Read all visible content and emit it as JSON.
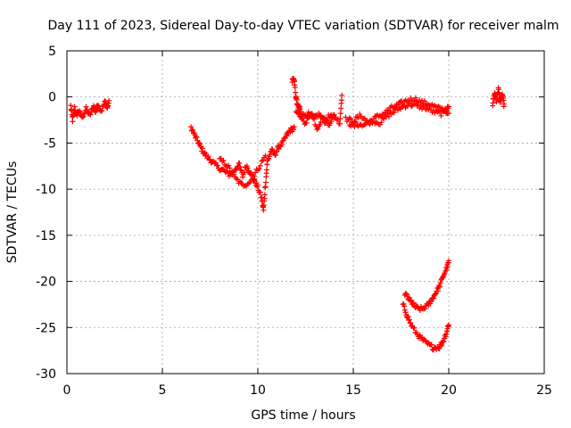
{
  "chart_data": {
    "type": "scatter",
    "title": "Day 111 of 2023, Sidereal Day-to-day VTEC variation (SDTVAR) for receiver malm",
    "xlabel": "GPS time / hours",
    "ylabel": "SDTVAR / TECUs",
    "xlim": [
      0,
      25
    ],
    "ylim": [
      -30,
      5
    ],
    "xticks": [
      0,
      5,
      10,
      15,
      20,
      25
    ],
    "yticks": [
      5,
      0,
      -5,
      -10,
      -15,
      -20,
      -25,
      -30
    ],
    "grid": true,
    "marker": "+",
    "color": "#ff0000",
    "series": [
      {
        "name": "SDTVAR",
        "segments": [
          [
            [
              0.2,
              -1.0
            ],
            [
              0.3,
              -2.5
            ],
            [
              0.4,
              -1.2
            ],
            [
              0.5,
              -2.0
            ],
            [
              0.6,
              -1.5
            ],
            [
              0.8,
              -2.2
            ],
            [
              1.0,
              -1.3
            ],
            [
              1.2,
              -2.0
            ],
            [
              1.4,
              -1.0
            ],
            [
              1.5,
              -1.6
            ],
            [
              1.6,
              -0.8
            ],
            [
              1.8,
              -1.5
            ],
            [
              2.0,
              -0.5
            ],
            [
              2.1,
              -1.2
            ],
            [
              2.2,
              -0.6
            ]
          ],
          [
            [
              6.5,
              -3.3
            ],
            [
              6.7,
              -4.2
            ],
            [
              6.9,
              -5.0
            ],
            [
              7.1,
              -5.8
            ],
            [
              7.3,
              -6.4
            ],
            [
              7.6,
              -7.0
            ],
            [
              7.9,
              -7.6
            ],
            [
              8.2,
              -8.0
            ],
            [
              8.5,
              -8.4
            ],
            [
              8.8,
              -8.0
            ],
            [
              9.0,
              -7.2
            ],
            [
              9.2,
              -8.6
            ],
            [
              9.4,
              -7.4
            ],
            [
              9.6,
              -8.2
            ],
            [
              9.8,
              -9.0
            ],
            [
              10.0,
              -9.8
            ],
            [
              10.2,
              -11.0
            ],
            [
              10.3,
              -12.3
            ],
            [
              10.4,
              -9.5
            ],
            [
              10.5,
              -7.0
            ],
            [
              10.7,
              -5.8
            ],
            [
              10.9,
              -6.2
            ],
            [
              11.1,
              -5.4
            ],
            [
              11.3,
              -5.0
            ],
            [
              11.5,
              -4.2
            ],
            [
              11.7,
              -3.6
            ],
            [
              11.9,
              -3.4
            ]
          ],
          [
            [
              8.0,
              -6.8
            ],
            [
              8.4,
              -7.4
            ],
            [
              8.8,
              -8.8
            ],
            [
              9.2,
              -9.6
            ],
            [
              9.6,
              -9.2
            ],
            [
              10.0,
              -7.8
            ],
            [
              10.4,
              -6.4
            ]
          ],
          [
            [
              11.8,
              1.8
            ],
            [
              11.9,
              2.0
            ],
            [
              12.0,
              -0.2
            ],
            [
              12.1,
              -1.0
            ],
            [
              12.2,
              -1.4
            ]
          ],
          [
            [
              12.0,
              -1.6
            ],
            [
              12.3,
              -2.2
            ],
            [
              12.6,
              -1.8
            ],
            [
              12.9,
              -2.4
            ],
            [
              13.2,
              -1.9
            ],
            [
              13.5,
              -2.6
            ],
            [
              13.8,
              -2.0
            ],
            [
              14.0,
              -2.4
            ]
          ],
          [
            [
              12.2,
              -1.2
            ],
            [
              12.5,
              -3.0
            ],
            [
              12.8,
              -1.6
            ],
            [
              13.1,
              -3.4
            ],
            [
              13.4,
              -2.2
            ],
            [
              13.7,
              -3.0
            ],
            [
              14.0,
              -2.0
            ],
            [
              14.3,
              -2.8
            ],
            [
              14.4,
              0.4
            ]
          ],
          [
            [
              14.6,
              -2.4
            ],
            [
              15.0,
              -2.6
            ],
            [
              15.4,
              -2.0
            ],
            [
              15.8,
              -2.8
            ],
            [
              16.2,
              -2.2
            ],
            [
              16.6,
              -1.8
            ],
            [
              17.0,
              -1.2
            ],
            [
              17.4,
              -0.8
            ],
            [
              17.8,
              -0.4
            ],
            [
              18.2,
              -0.2
            ],
            [
              18.6,
              -0.6
            ],
            [
              19.0,
              -0.8
            ],
            [
              19.4,
              -1.2
            ],
            [
              19.8,
              -1.4
            ],
            [
              20.0,
              -1.2
            ]
          ],
          [
            [
              14.8,
              -3.2
            ],
            [
              15.2,
              -2.9
            ],
            [
              15.6,
              -3.0
            ],
            [
              16.0,
              -2.6
            ],
            [
              16.4,
              -2.8
            ],
            [
              16.8,
              -2.0
            ],
            [
              17.2,
              -1.5
            ],
            [
              17.6,
              -1.0
            ],
            [
              18.0,
              -0.8
            ],
            [
              18.4,
              -1.0
            ],
            [
              18.8,
              -1.2
            ],
            [
              19.2,
              -1.6
            ],
            [
              19.6,
              -1.8
            ],
            [
              20.0,
              -1.6
            ]
          ],
          [
            [
              22.3,
              -0.8
            ],
            [
              22.4,
              0.5
            ],
            [
              22.5,
              -0.4
            ],
            [
              22.6,
              0.9
            ],
            [
              22.7,
              -0.6
            ],
            [
              22.8,
              0.3
            ],
            [
              22.9,
              -1.0
            ]
          ],
          [
            [
              17.7,
              -21.3
            ],
            [
              17.9,
              -21.9
            ],
            [
              18.1,
              -22.4
            ],
            [
              18.3,
              -22.9
            ],
            [
              18.6,
              -23.0
            ],
            [
              18.9,
              -22.6
            ],
            [
              19.1,
              -22.0
            ],
            [
              19.3,
              -21.3
            ],
            [
              19.5,
              -20.6
            ],
            [
              19.7,
              -19.5
            ],
            [
              19.9,
              -18.5
            ],
            [
              20.0,
              -17.9
            ]
          ],
          [
            [
              17.6,
              -22.5
            ],
            [
              17.8,
              -23.6
            ],
            [
              18.0,
              -24.6
            ],
            [
              18.3,
              -25.6
            ],
            [
              18.6,
              -26.3
            ],
            [
              18.9,
              -26.8
            ],
            [
              19.2,
              -27.2
            ],
            [
              19.5,
              -27.1
            ],
            [
              19.7,
              -26.5
            ],
            [
              19.9,
              -25.4
            ],
            [
              20.0,
              -24.6
            ]
          ]
        ]
      }
    ]
  }
}
